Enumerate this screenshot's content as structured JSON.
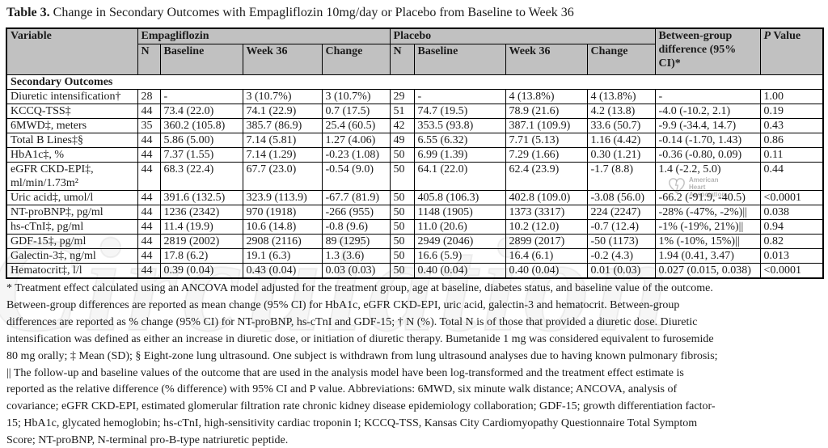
{
  "colors": {
    "header_bg": "#c1c1c1",
    "border": "#000000",
    "text": "#1b1b1b"
  },
  "title": {
    "label": "Table 3.",
    "text": " Change in Secondary Outcomes with Empagliflozin 10mg/day or Placebo from Baseline to Week 36"
  },
  "table": {
    "header": {
      "variable": "Variable",
      "group_empagliflozin": "Empagliflozin",
      "group_placebo": "Placebo",
      "sub": [
        "N",
        "Baseline",
        "Week 36",
        "Change"
      ],
      "between_group": "Between-group difference (95% CI)*",
      "p_italic": "P",
      "p_rest": " Value"
    },
    "section": "Secondary Outcomes",
    "rows": [
      {
        "variable": "Diuretic intensification†",
        "empa": [
          "28",
          "-",
          "3 (10.7%)",
          "3 (10.7%)"
        ],
        "placebo": [
          "29",
          "-",
          "4 (13.8%)",
          "4 (13.8%)"
        ],
        "diff": "-",
        "p": "1.00"
      },
      {
        "variable": "KCCQ-TSS‡",
        "empa": [
          "44",
          "73.4 (22.0)",
          "74.1 (22.9)",
          "0.7 (17.5)"
        ],
        "placebo": [
          "51",
          "74.7 (19.5)",
          "78.9 (21.6)",
          "4.2 (13.8)"
        ],
        "diff": "-4.0 (-10.2, 2.1)",
        "p": "0.19"
      },
      {
        "variable": "6MWD‡, meters",
        "empa": [
          "35",
          "360.2 (105.8)",
          "385.7 (86.9)",
          "25.4 (60.5)"
        ],
        "placebo": [
          "42",
          "353.5 (93.8)",
          "387.1 (109.9)",
          "33.6 (50.7)"
        ],
        "diff": "-9.9 (-34.4, 14.7)",
        "p": "0.43"
      },
      {
        "variable": "Total B Lines‡§",
        "empa": [
          "44",
          "5.86 (5.00)",
          "7.14 (5.81)",
          "1.27 (4.06)"
        ],
        "placebo": [
          "49",
          "6.55 (6.32)",
          "7.71 (5.13)",
          "1.16 (4.42)"
        ],
        "diff": "-0.14 (-1.70, 1.43)",
        "p": "0.86"
      },
      {
        "variable": "HbA1c‡, %",
        "empa": [
          "44",
          "7.37 (1.55)",
          "7.14 (1.29)",
          "-0.23 (1.08)"
        ],
        "placebo": [
          "50",
          "6.99 (1.39)",
          "7.29 (1.66)",
          "0.30 (1.21)"
        ],
        "diff": "-0.36 (-0.80, 0.09)",
        "p": "0.11"
      },
      {
        "variable": "eGFR CKD-EPI‡, ml/min/1.73m²",
        "empa": [
          "44",
          "68.3 (22.4)",
          "67.7 (23.0)",
          "-0.54 (9.0)"
        ],
        "placebo": [
          "50",
          "64.1 (22.0)",
          "62.4 (23.9)",
          "-1.7 (8.8)"
        ],
        "diff": "1.4 (-2.2, 5.0)",
        "p": "0.44"
      },
      {
        "variable": "Uric acid‡, umol/l",
        "empa": [
          "44",
          "391.6 (132.5)",
          "323.9 (113.9)",
          "-67.7 (81.9)"
        ],
        "placebo": [
          "50",
          "405.8 (106.3)",
          "402.8 (109.0)",
          "-3.08 (56.0)"
        ],
        "diff": "-66.2 (-91.9, -40.5)",
        "p": "<0.0001"
      },
      {
        "variable": "NT-proBNP‡, pg/ml",
        "empa": [
          "44",
          "1236 (2342)",
          "970 (1918)",
          "-266 (955)"
        ],
        "placebo": [
          "50",
          "1148 (1905)",
          "1373 (3317)",
          "224 (2247)"
        ],
        "diff": "-28% (-47%, -2%)||",
        "p": "0.038"
      },
      {
        "variable": "hs-cTnI‡, pg/ml",
        "empa": [
          "44",
          "11.4 (19.9)",
          "10.6 (14.8)",
          "-0.8 (9.6)"
        ],
        "placebo": [
          "50",
          "11.0 (20.6)",
          "10.2 (12.0)",
          "-0.7 (12.4)"
        ],
        "diff": "-1% (-19%, 21%)||",
        "p": "0.94"
      },
      {
        "variable": "GDF-15‡, pg/ml",
        "empa": [
          "44",
          "2819 (2002)",
          "2908 (2116)",
          "89 (1295)"
        ],
        "placebo": [
          "50",
          "2949 (2046)",
          "2899 (2017)",
          "-50 (1173)"
        ],
        "diff": "1% (-10%, 15%)||",
        "p": "0.82"
      },
      {
        "variable": "Galectin-3‡, ng/ml",
        "empa": [
          "44",
          "17.8 (6.2)",
          "19.1 (6.3)",
          "1.3 (3.6)"
        ],
        "placebo": [
          "50",
          "16.6 (5.9)",
          "16.4 (6.1)",
          "-0.2 (4.3)"
        ],
        "diff": "1.94 (0.41, 3.47)",
        "p": "0.013"
      },
      {
        "variable": "Hematocrit‡, l/l",
        "empa": [
          "44",
          "0.39 (0.04)",
          "0.43 (0.04)",
          "0.03 (0.03)"
        ],
        "placebo": [
          "50",
          "0.40 (0.04)",
          "0.40 (0.04)",
          "0.01 (0.03)"
        ],
        "diff": "0.027 (0.015, 0.038)",
        "p": "<0.0001"
      }
    ]
  },
  "footnotes": [
    "* Treatment effect calculated using an ANCOVA model adjusted for the treatment group, age at baseline, diabetes status, and baseline value of the outcome.",
    "Between-group differences are reported as mean change (95% CI) for HbA1c, eGFR CKD-EPI, uric acid, galectin-3 and hematocrit. Between-group",
    "differences are reported as % change (95% CI) for NT-proBNP, hs-cTnI and GDF-15; † N (%). Total N is of those that provided a diuretic dose. Diuretic",
    "intensification was defined as either an increase in diuretic dose, or initiation of diuretic therapy. Bumetanide 1 mg was considered equivalent to furosemide",
    "80 mg orally; ‡ Mean (SD); § Eight-zone lung ultrasound. One subject is withdrawn from lung ultrasound analyses due to having known pulmonary fibrosis;",
    "|| The follow-up and baseline values of the outcome that are used in the analysis model have been log-transformed and the treatment effect estimate is",
    "reported as the relative difference (% difference) with 95% CI and P value. Abbreviations: 6MWD, six minute walk distance; ANCOVA, analysis of",
    "covariance; eGFR CKD-EPI, estimated glomerular filtration rate chronic kidney disease epidemiology collaboration; GDF-15; growth differentiation factor-",
    "15; HbA1c, glycated hemoglobin; hs-cTnI, high-sensitivity cardiac troponin I; KCCQ-TSS, Kansas City Cardiomyopathy Questionnaire Total Symptom",
    "Score; NT-proBNP, N-terminal pro-B-type natriuretic peptide."
  ],
  "watermark": {
    "big_text": "Circulation",
    "logo_lines": [
      "American",
      "Heart",
      "Association."
    ]
  }
}
